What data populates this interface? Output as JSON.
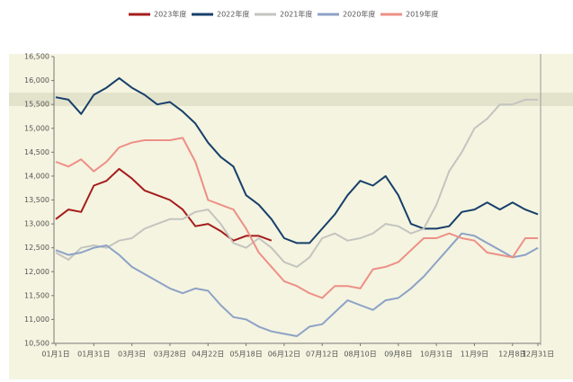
{
  "chart_data": {
    "type": "line",
    "categories": [
      "01月1日",
      null,
      null,
      "01月31日",
      null,
      null,
      "03月3日",
      null,
      null,
      "03月28日",
      null,
      null,
      "04月22日",
      null,
      null,
      "05月18日",
      null,
      null,
      "06月12日",
      null,
      null,
      "07月12日",
      null,
      null,
      "08月10日",
      null,
      null,
      "09月8日",
      null,
      null,
      "10月31日",
      null,
      null,
      "11月9日",
      null,
      null,
      "12月8日",
      null,
      "12月31日"
    ],
    "series": [
      {
        "name": "2023年度",
        "color": "#a51c1c",
        "values": [
          13100,
          13300,
          13250,
          13800,
          13900,
          14150,
          13950,
          13700,
          13600,
          13500,
          13300,
          12950,
          13000,
          12850,
          12650,
          12750,
          12750,
          12650,
          null,
          null,
          null,
          null,
          null,
          null,
          null,
          null,
          null,
          null,
          null,
          null,
          null,
          null,
          null,
          null,
          null,
          null,
          null,
          null,
          null
        ]
      },
      {
        "name": "2022年度",
        "color": "#173f6b",
        "values": [
          15650,
          15600,
          15300,
          15700,
          15850,
          16050,
          15850,
          15700,
          15500,
          15550,
          15350,
          15100,
          14700,
          14400,
          14200,
          13600,
          13400,
          13100,
          12700,
          12600,
          12600,
          12900,
          13200,
          13600,
          13900,
          13800,
          14000,
          13600,
          13000,
          12900,
          12900,
          12950,
          13250,
          13300,
          13450,
          13300,
          13450,
          13300,
          13200
        ]
      },
      {
        "name": "2021年度",
        "color": "#c4c4c0",
        "values": [
          12400,
          12250,
          12500,
          12550,
          12500,
          12650,
          12700,
          12900,
          13000,
          13100,
          13100,
          13250,
          13300,
          13000,
          12600,
          12500,
          12700,
          12500,
          12200,
          12100,
          12300,
          12700,
          12800,
          12650,
          12700,
          12800,
          13000,
          12950,
          12800,
          12900,
          13400,
          14100,
          14500,
          15000,
          15200,
          15500,
          15500,
          15600,
          15600
        ]
      },
      {
        "name": "2020年度",
        "color": "#8da2c6",
        "values": [
          12450,
          12350,
          12400,
          12500,
          12550,
          12350,
          12100,
          11950,
          11800,
          11650,
          11550,
          11650,
          11600,
          11300,
          11050,
          11000,
          10850,
          10750,
          10700,
          10650,
          10850,
          10900,
          11150,
          11400,
          11300,
          11200,
          11400,
          11450,
          11650,
          11900,
          12200,
          12500,
          12800,
          12750,
          12600,
          12450,
          12300,
          12350,
          12500
        ]
      },
      {
        "name": "2019年度",
        "color": "#ee8f86",
        "values": [
          14300,
          14200,
          14350,
          14100,
          14300,
          14600,
          14700,
          14750,
          14750,
          14750,
          14800,
          14300,
          13500,
          13400,
          13300,
          12900,
          12400,
          12100,
          11800,
          11700,
          11550,
          11450,
          11700,
          11700,
          11650,
          12050,
          12100,
          12200,
          12450,
          12700,
          12700,
          12800,
          12700,
          12650,
          12400,
          12350,
          12300,
          12700,
          12700
        ]
      }
    ],
    "ylim": [
      10500,
      16500
    ],
    "yticks": [
      {
        "value": 10500,
        "label": "10,500"
      },
      {
        "value": 11000,
        "label": "11,000"
      },
      {
        "value": 11500,
        "label": "11,500"
      },
      {
        "value": 12000,
        "label": "12,000"
      },
      {
        "value": 12500,
        "label": "12,500"
      },
      {
        "value": 13000,
        "label": "13,000"
      },
      {
        "value": 13500,
        "label": "13,500"
      },
      {
        "value": 14000,
        "label": "14,000"
      },
      {
        "value": 14500,
        "label": "14,500"
      },
      {
        "value": 15000,
        "label": "15,000"
      },
      {
        "value": 15500,
        "label": "15,500"
      },
      {
        "value": 16000,
        "label": "16,000"
      },
      {
        "value": 16500,
        "label": "16,500"
      }
    ],
    "grid": false,
    "legend": "top"
  }
}
